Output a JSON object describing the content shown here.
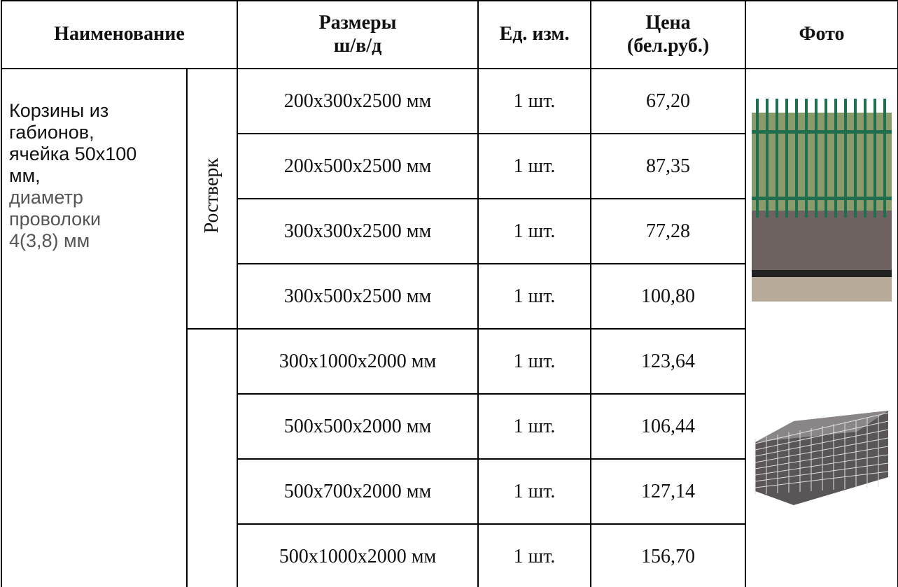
{
  "table": {
    "header": [
      "Наименование",
      "Размеры\nш/в/д",
      "Ед. изм.",
      "Цена\n(бел.руб.)",
      "Фото"
    ],
    "name_main": "Корзины из габионов, ячейка 50х100 мм,",
    "name_detail": "диаметр проволоки 4(3,8) мм",
    "groups": [
      {
        "label": "Ростверк",
        "rows": [
          [
            "200х300х2500 мм",
            "1 шт.",
            "67,20"
          ],
          [
            "200х500х2500 мм",
            "1 шт.",
            "87,35"
          ],
          [
            "300х300х2500 мм",
            "1 шт.",
            "77,28"
          ],
          [
            "300х500х2500 мм",
            "1 шт.",
            "100,80"
          ]
        ]
      },
      {
        "rows": [
          [
            "300х1000х2000 мм",
            "1 шт.",
            "123,64"
          ],
          [
            "500х500х2000 мм",
            "1 шт.",
            "106,44"
          ],
          [
            "500х700х2000 мм",
            "1 шт.",
            "127,14"
          ],
          [
            "500х1000х2000 мм",
            "1 шт.",
            "156,70"
          ]
        ]
      }
    ]
  }
}
